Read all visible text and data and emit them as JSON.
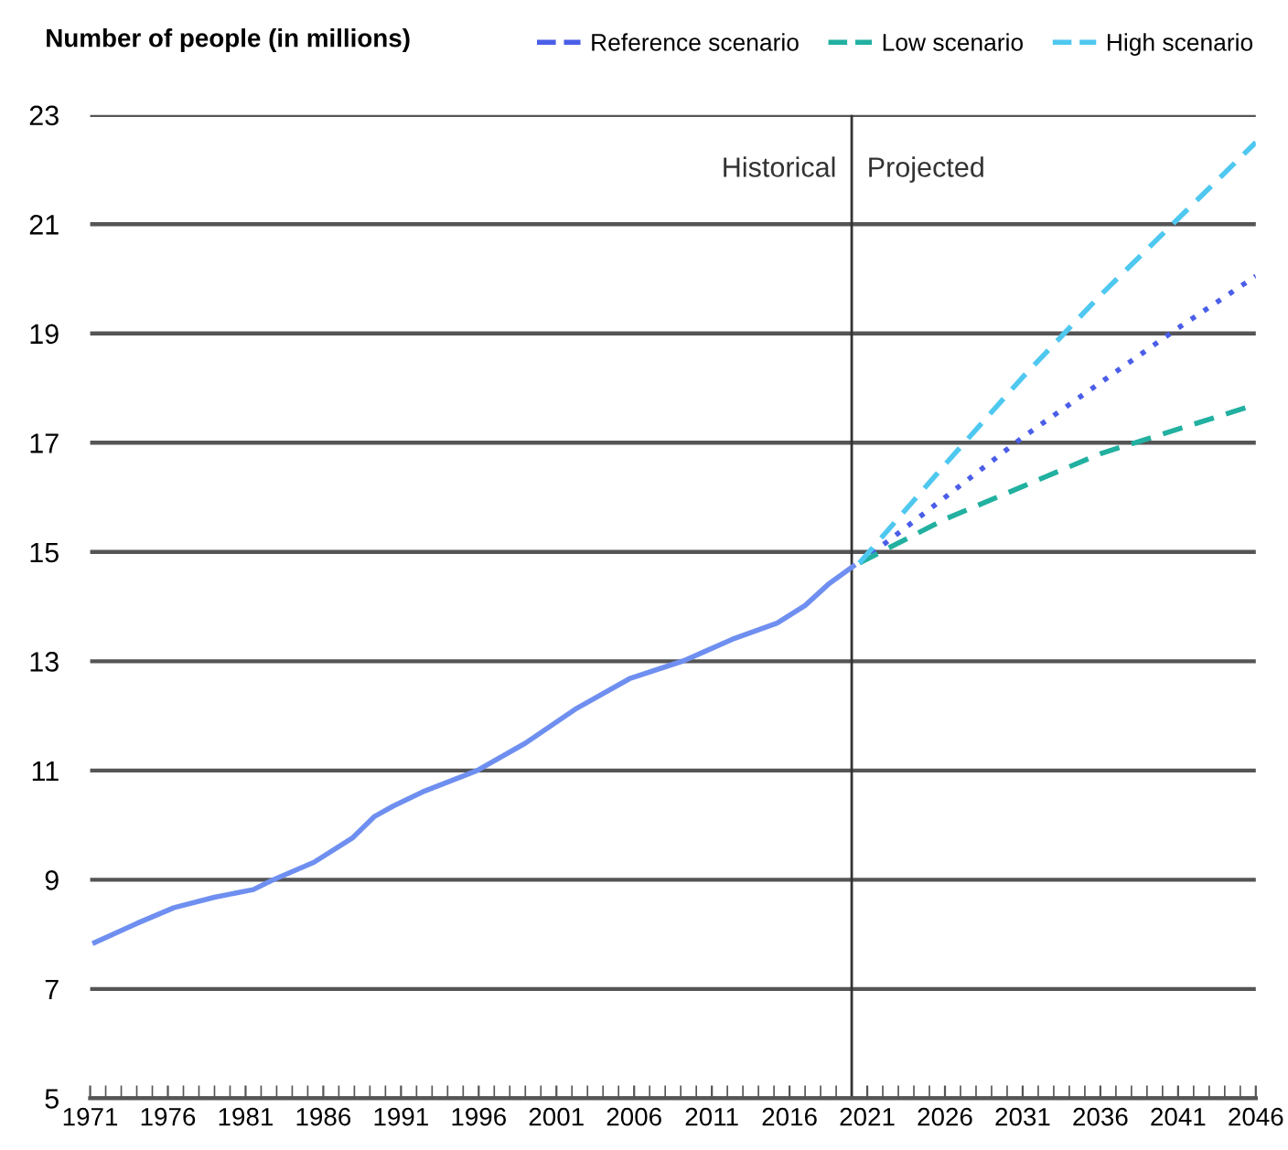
{
  "chart_data": {
    "type": "line",
    "ylabel": "Number of people (in millions)",
    "xlim": [
      1971,
      2046
    ],
    "xticks": [
      1971,
      1976,
      1981,
      1986,
      1991,
      1996,
      2001,
      2006,
      2011,
      2016,
      2021,
      2026,
      2031,
      2036,
      2041,
      2046
    ],
    "ylim": [
      5,
      23
    ],
    "yticks": [
      5,
      7,
      9,
      11,
      13,
      15,
      17,
      19,
      21,
      23
    ],
    "grid": "y",
    "legend": "top right",
    "ref_lines": [
      {
        "axis": "x",
        "value": 2020,
        "color": "#333333"
      }
    ],
    "annotations": [
      {
        "text": "Historical",
        "x": 2020,
        "y": 22
      },
      {
        "text": "Projected",
        "x": 2020,
        "y": 22
      }
    ],
    "series": [
      {
        "color": "#6f8ff0",
        "line_style": "solid",
        "x": [
          1971.3,
          1974,
          1976.4,
          1979,
          1981.5,
          1982.7,
          1985.4,
          1987.9,
          1989.3,
          1990.5,
          1992.4,
          1995.9,
          1999,
          2002.2,
          2005.7,
          2009.2,
          2012.3,
          2015.2,
          2017,
          2018.5,
          2020.1
        ],
        "values": [
          7.85,
          8.2,
          8.49,
          8.68,
          8.82,
          8.99,
          9.32,
          9.77,
          10.16,
          10.35,
          10.61,
          11.0,
          11.5,
          12.12,
          12.68,
          13.01,
          13.4,
          13.7,
          14.02,
          14.41,
          14.74
        ]
      },
      {
        "name": "Reference scenario",
        "color": "#4a5ee8",
        "line_style": "dotted",
        "x": [
          2020.5,
          2026,
          2031,
          2036,
          2041,
          2046
        ],
        "values": [
          14.8,
          16.0,
          17.1,
          18.1,
          19.1,
          20.05
        ]
      },
      {
        "name": "Low scenario",
        "color": "#22b0a0",
        "line_style": "dashed",
        "x": [
          2020.5,
          2026,
          2031,
          2036,
          2041,
          2046
        ],
        "values": [
          14.8,
          15.6,
          16.2,
          16.8,
          17.25,
          17.7
        ]
      },
      {
        "name": "High scenario",
        "color": "#4fc8f0",
        "line_style": "dashed",
        "x": [
          2020.5,
          2026,
          2031,
          2036,
          2041,
          2046
        ],
        "values": [
          14.8,
          16.6,
          18.2,
          19.7,
          21.1,
          22.5
        ]
      }
    ]
  }
}
